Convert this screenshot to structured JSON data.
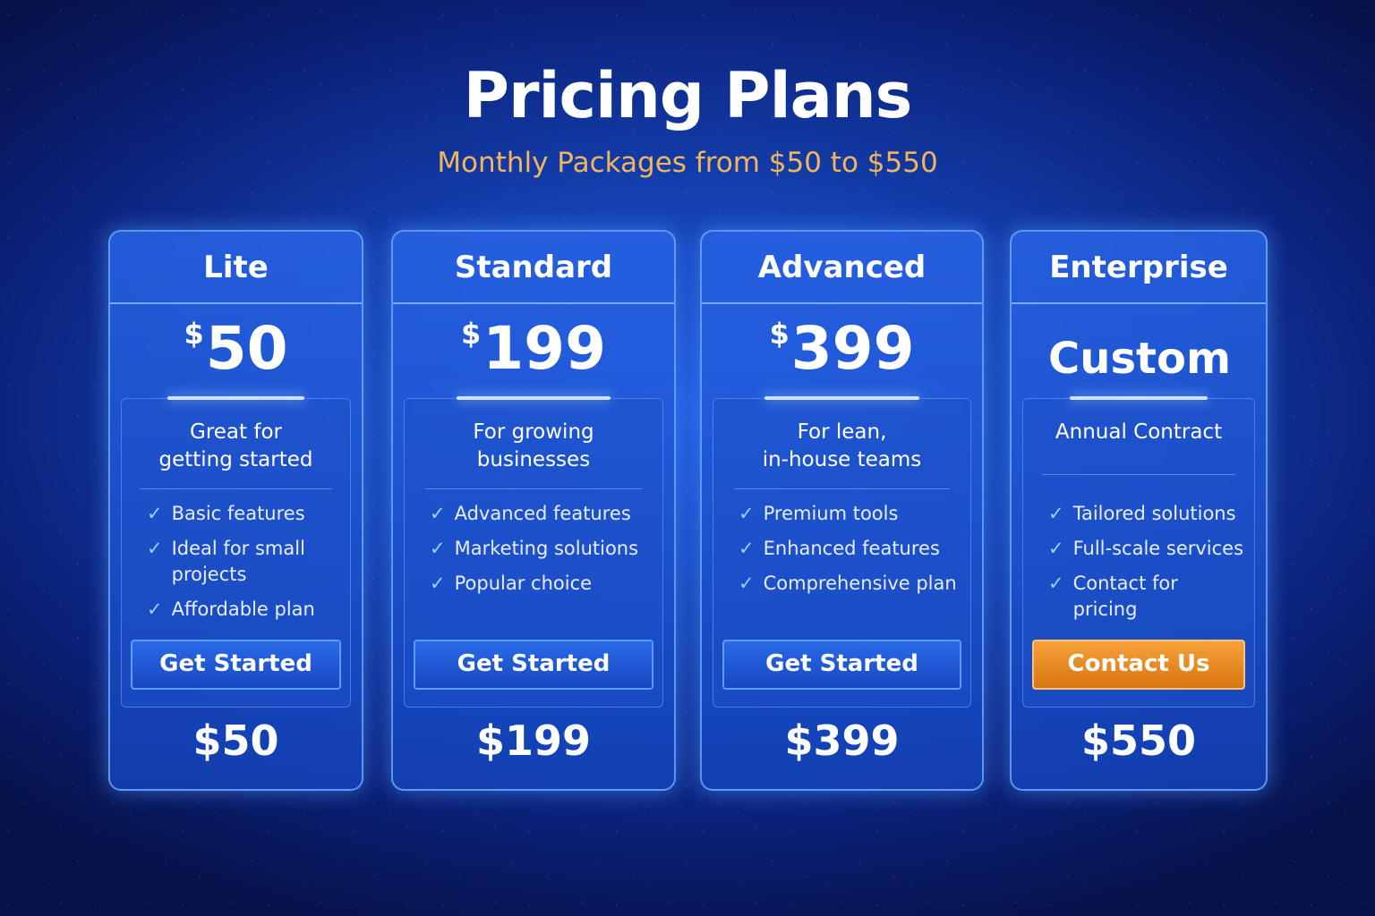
{
  "header": {
    "title": "Pricing Plans",
    "subtitle": "Monthly Packages from $50 to $550"
  },
  "colors": {
    "accent": "#f2b55e",
    "cta_orange": "#e88a1e",
    "card_blue": "#1f5ad8"
  },
  "plans": [
    {
      "name": "Lite",
      "currency": "$",
      "price": "50",
      "description": [
        "Great for",
        "getting started"
      ],
      "features": [
        "Basic features",
        "Ideal for small projects",
        "Affordable plan"
      ],
      "button": "Get Started",
      "bottom_price": "$50"
    },
    {
      "name": "Standard",
      "currency": "$",
      "price": "199",
      "description": [
        "For growing",
        "businesses"
      ],
      "features": [
        "Advanced features",
        "Marketing solutions",
        "Popular choice"
      ],
      "button": "Get Started",
      "bottom_price": "$199"
    },
    {
      "name": "Advanced",
      "currency": "$",
      "price": "399",
      "description": [
        "For lean,",
        "in-house teams"
      ],
      "features": [
        "Premium tools",
        "Enhanced features",
        "Comprehensive plan"
      ],
      "button": "Get Started",
      "bottom_price": "$399"
    },
    {
      "name": "Enterprise",
      "currency": "",
      "price": "Custom",
      "description": [
        "Annual Contract",
        ""
      ],
      "features": [
        "Tailored solutions",
        "Full-scale services",
        "Contact for pricing"
      ],
      "button": "Contact Us",
      "bottom_price": "$550"
    }
  ]
}
